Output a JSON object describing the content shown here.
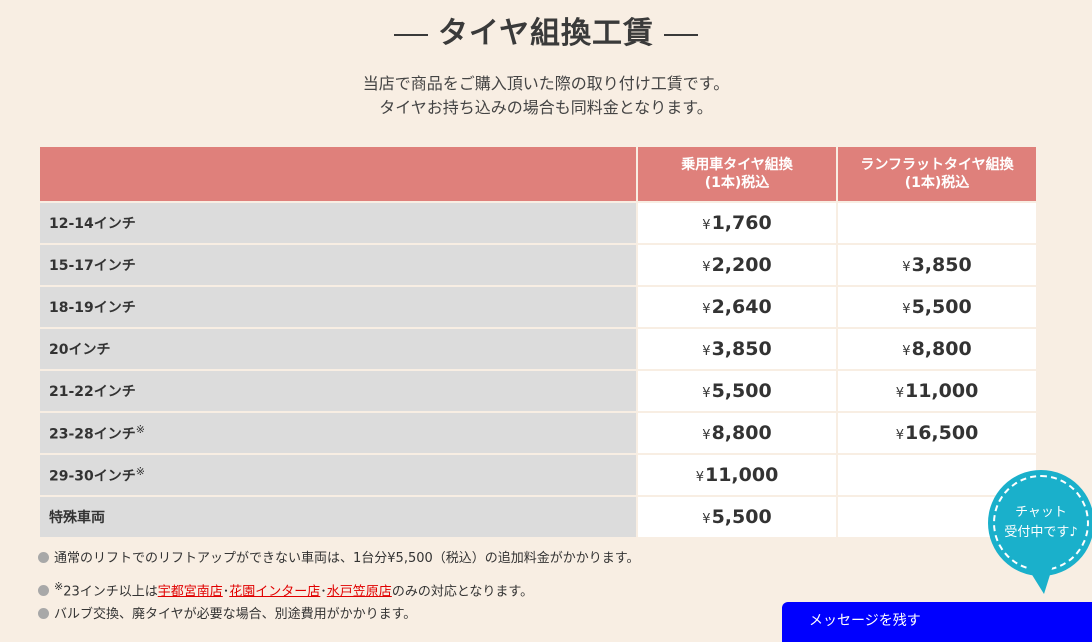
{
  "title": "タイヤ組換工賃",
  "subtitle": [
    "当店で商品をご購入頂いた際の取り付け工賃です。",
    "タイヤお持ち込みの場合も同料金となります。"
  ],
  "table": {
    "headers": [
      "",
      "乗用車タイヤ組換\n(1本)税込",
      "ランフラットタイヤ組換\n(1本)税込"
    ],
    "header_lines": [
      [
        "乗用車タイヤ組換",
        "(1本)税込"
      ],
      [
        "ランフラットタイヤ組換",
        "(1本)税込"
      ]
    ],
    "currency": "¥",
    "rows": [
      {
        "size": "12-14インチ",
        "mark": "",
        "car": "1,760",
        "runflat": ""
      },
      {
        "size": "15-17インチ",
        "mark": "",
        "car": "2,200",
        "runflat": "3,850"
      },
      {
        "size": "18-19インチ",
        "mark": "",
        "car": "2,640",
        "runflat": "5,500"
      },
      {
        "size": "20インチ",
        "mark": "",
        "car": "3,850",
        "runflat": "8,800"
      },
      {
        "size": "21-22インチ",
        "mark": "",
        "car": "5,500",
        "runflat": "11,000"
      },
      {
        "size": "23-28インチ",
        "mark": "※",
        "car": "8,800",
        "runflat": "16,500"
      },
      {
        "size": "29-30インチ",
        "mark": "※",
        "car": "11,000",
        "runflat": ""
      },
      {
        "size": "特殊車両",
        "mark": "",
        "car": "5,500",
        "runflat": ""
      }
    ]
  },
  "notes": {
    "n1": "通常のリフトでのリフトアップができない車両は、1台分¥5,500（税込）の追加料金がかかります。",
    "n2_mark": "※",
    "n2_pre": "23インチ以上は",
    "n2_links": [
      "宇都宮南店",
      "花園インター店",
      "水戸笠原店"
    ],
    "n2_sep": "･",
    "n2_post": "のみの対応となります。",
    "n3": "バルブ交換、廃タイヤが必要な場合、別途費用がかかります。"
  },
  "chat": {
    "line1": "チャット",
    "line2": "受付中です♪"
  },
  "message_button": "メッセージを残す",
  "colors": {
    "background": "#f8eee3",
    "header": "#df807b",
    "chat": "#1ab0cb",
    "message": "#0000ff",
    "link": "#e00000"
  }
}
